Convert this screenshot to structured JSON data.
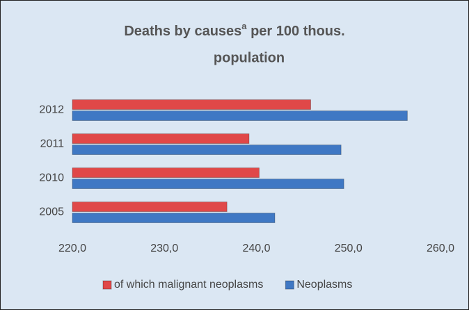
{
  "chart_data": {
    "type": "hbar",
    "title": "Deaths by causes",
    "title_superscript": "a",
    "title_continued": " per 100 thous.",
    "title_line2": "population",
    "categories": [
      "2005",
      "2010",
      "2011",
      "2012"
    ],
    "series": [
      {
        "name": "of which malignant neoplasms",
        "color": "#e04848",
        "values": [
          236.8,
          240.3,
          239.2,
          245.9
        ]
      },
      {
        "name": "Neoplasms",
        "color": "#3f78c4",
        "values": [
          242.0,
          249.5,
          249.2,
          256.4
        ]
      }
    ],
    "xlim": [
      220,
      260
    ],
    "xticks": [
      {
        "value": 220,
        "label": "220,0"
      },
      {
        "value": 230,
        "label": "230,0"
      },
      {
        "value": 240,
        "label": "240,0"
      },
      {
        "value": 250,
        "label": "250,0"
      },
      {
        "value": 260,
        "label": "260,0"
      }
    ],
    "grid": false,
    "legend": "bottom"
  }
}
